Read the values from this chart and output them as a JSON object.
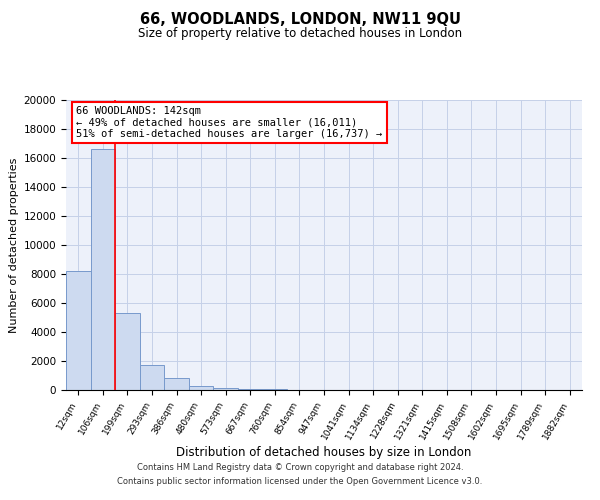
{
  "title": "66, WOODLANDS, LONDON, NW11 9QU",
  "subtitle": "Size of property relative to detached houses in London",
  "xlabel": "Distribution of detached houses by size in London",
  "ylabel": "Number of detached properties",
  "categories": [
    "12sqm",
    "106sqm",
    "199sqm",
    "293sqm",
    "386sqm",
    "480sqm",
    "573sqm",
    "667sqm",
    "760sqm",
    "854sqm",
    "947sqm",
    "1041sqm",
    "1134sqm",
    "1228sqm",
    "1321sqm",
    "1415sqm",
    "1508sqm",
    "1602sqm",
    "1695sqm",
    "1789sqm",
    "1882sqm"
  ],
  "bar_values": [
    8200,
    16600,
    5300,
    1750,
    800,
    300,
    150,
    100,
    70,
    0,
    0,
    0,
    0,
    0,
    0,
    0,
    0,
    0,
    0,
    0,
    0
  ],
  "bar_color": "#cddaf0",
  "bar_edge_color": "#7799cc",
  "red_line_x": 1.5,
  "annotation_text_line1": "66 WOODLANDS: 142sqm",
  "annotation_text_line2": "← 49% of detached houses are smaller (16,011)",
  "annotation_text_line3": "51% of semi-detached houses are larger (16,737) →",
  "ylim": [
    0,
    20000
  ],
  "yticks": [
    0,
    2000,
    4000,
    6000,
    8000,
    10000,
    12000,
    14000,
    16000,
    18000,
    20000
  ],
  "footer_line1": "Contains HM Land Registry data © Crown copyright and database right 2024.",
  "footer_line2": "Contains public sector information licensed under the Open Government Licence v3.0.",
  "grid_color": "#c5d0e8",
  "background_color": "#edf1fa",
  "fig_background": "#ffffff"
}
